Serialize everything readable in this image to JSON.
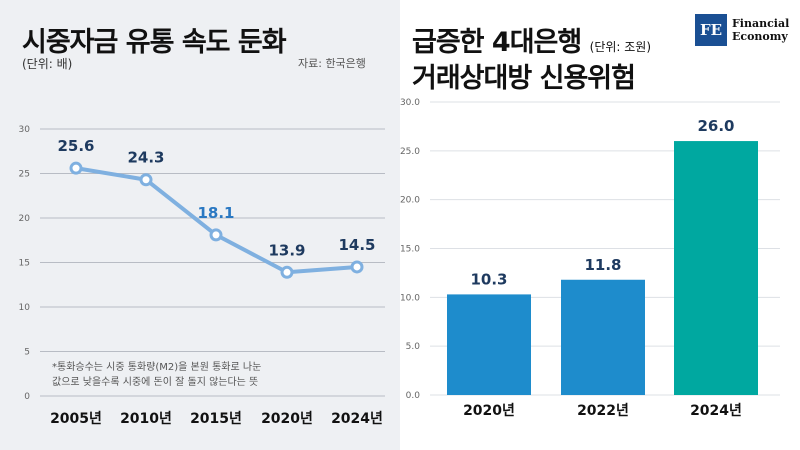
{
  "left": {
    "title": "시중자금 유통 속도 둔화",
    "unit": "(단위: 배)",
    "source": "자료: 한국은행",
    "note_line1": "*통화승수는 시중 통화량(M2)을 본원 통화로 나눈",
    "note_line2": "값으로 낮을수록 시중에 돈이 잘 돌지 않는다는 뜻"
  },
  "right": {
    "title_line1": "급증한 4대은행",
    "title_unit": "(단위: 조원)",
    "title_line2": "거래상대방 신용위험"
  },
  "logo": {
    "mark": "FE",
    "line1": "Financial",
    "line2": "Economy"
  },
  "chart_data": [
    {
      "type": "line",
      "categories": [
        "2005년",
        "2010년",
        "2015년",
        "2020년",
        "2024년"
      ],
      "values": [
        25.6,
        24.3,
        18.1,
        13.9,
        14.5
      ],
      "ylim": [
        0,
        30
      ],
      "yticks": [
        0,
        5,
        10,
        15,
        20,
        25,
        30
      ],
      "grid": true,
      "line_color": "#7fb0e0",
      "label_colors": [
        "#1e3a5f",
        "#1e3a5f",
        "#2a78c2",
        "#1e3a5f",
        "#1e3a5f"
      ]
    },
    {
      "type": "bar",
      "categories": [
        "2020년",
        "2022년",
        "2024년"
      ],
      "values": [
        10.3,
        11.8,
        26.0
      ],
      "value_labels": [
        "10.3",
        "11.8",
        "26.0"
      ],
      "ylim": [
        0,
        30
      ],
      "yticks": [
        "0.0",
        "5.0",
        "10.0",
        "15.0",
        "20.0",
        "25.0",
        "30.0"
      ],
      "grid": true,
      "colors": [
        "#1e8ccc",
        "#1e8ccc",
        "#00a8a0"
      ]
    }
  ]
}
